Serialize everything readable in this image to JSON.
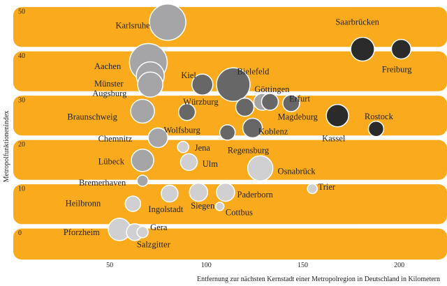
{
  "chart_data": {
    "type": "scatter",
    "xlabel": "Entfernung zur nächsten Kernstadt einer Metropolregion in Deutschland in Kilometern",
    "ylabel": "Metropolfunktionenindex",
    "xlim": [
      0,
      220
    ],
    "ylim": [
      -6,
      51
    ],
    "x_ticks": [
      "50",
      "100",
      "150",
      "200"
    ],
    "y_ticks": [
      "0",
      "10",
      "20",
      "30",
      "40",
      "50"
    ],
    "colors": {
      "band": "#f9ab1d",
      "dark": "#2b2b2b",
      "mid": "#676767",
      "light_mid": "#a5a5a7",
      "light": "#d0d0d2",
      "stroke": "#ffffff"
    },
    "points": [
      {
        "name": "Karlsruhe",
        "x": 80,
        "y": 47.6,
        "size": 26,
        "tone": "light_mid"
      },
      {
        "name": "Saarbrücken",
        "x": 181,
        "y": 41.5,
        "size": 17,
        "tone": "dark"
      },
      {
        "name": "Freiburg",
        "x": 201,
        "y": 41.5,
        "size": 14,
        "tone": "dark"
      },
      {
        "name": "Aachen",
        "x": 70,
        "y": 38.5,
        "size": 27,
        "tone": "light_mid"
      },
      {
        "name": "Münster",
        "x": 71,
        "y": 35.5,
        "size": 20,
        "tone": "light_mid"
      },
      {
        "name": "Augsburg",
        "x": 71,
        "y": 33.5,
        "size": 18,
        "tone": "light_mid"
      },
      {
        "name": "Kiel",
        "x": 98,
        "y": 33.5,
        "size": 15,
        "tone": "mid"
      },
      {
        "name": "Bielefeld",
        "x": 114,
        "y": 33.5,
        "size": 24,
        "tone": "mid"
      },
      {
        "name": "Würzburg",
        "x": 90,
        "y": 27.3,
        "size": 12,
        "tone": "mid"
      },
      {
        "name": "Göttingen",
        "x": 129,
        "y": 29.6,
        "size": 12,
        "tone": "light_mid"
      },
      {
        "name": "Göttingen-2",
        "x": 133,
        "y": 29.6,
        "size": 12,
        "tone": "mid"
      },
      {
        "name": "Erfurt",
        "x": 144,
        "y": 29.3,
        "size": 12,
        "tone": "mid"
      },
      {
        "name": "Magdeburg",
        "x": 120,
        "y": 28.4,
        "size": 13,
        "tone": "mid"
      },
      {
        "name": "Braunschweig",
        "x": 67,
        "y": 27.5,
        "size": 17,
        "tone": "light_mid"
      },
      {
        "name": "Kassel",
        "x": 168,
        "y": 26.5,
        "size": 16,
        "tone": "dark"
      },
      {
        "name": "Rostock",
        "x": 188,
        "y": 23.5,
        "size": 11,
        "tone": "dark"
      },
      {
        "name": "Koblenz",
        "x": 124,
        "y": 23.7,
        "size": 14,
        "tone": "mid"
      },
      {
        "name": "Regensburg",
        "x": 111,
        "y": 22.7,
        "size": 11,
        "tone": "mid"
      },
      {
        "name": "Wolfsburg",
        "x": 75,
        "y": 21.5,
        "size": 14,
        "tone": "light_mid"
      },
      {
        "name": "Chemnitz",
        "x": 75,
        "y": 21.5,
        "size": 14,
        "tone": "light_mid"
      },
      {
        "name": "Jena",
        "x": 88,
        "y": 19.4,
        "size": 8,
        "tone": "light"
      },
      {
        "name": "Lübeck",
        "x": 67,
        "y": 16.4,
        "size": 16,
        "tone": "light_mid"
      },
      {
        "name": "Ulm",
        "x": 91,
        "y": 16.0,
        "size": 12,
        "tone": "light"
      },
      {
        "name": "Osnabrück",
        "x": 128,
        "y": 14.6,
        "size": 18,
        "tone": "light"
      },
      {
        "name": "Bremerhaven",
        "x": 67,
        "y": 11.8,
        "size": 8,
        "tone": "light_mid"
      },
      {
        "name": "Trier",
        "x": 155,
        "y": 10.0,
        "size": 7,
        "tone": "light"
      },
      {
        "name": "Ingolstadt",
        "x": 81,
        "y": 8.9,
        "size": 12,
        "tone": "light"
      },
      {
        "name": "Siegen",
        "x": 96,
        "y": 9.2,
        "size": 13,
        "tone": "light"
      },
      {
        "name": "Paderborn",
        "x": 110,
        "y": 9.2,
        "size": 13,
        "tone": "light"
      },
      {
        "name": "Heilbronn",
        "x": 62,
        "y": 6.6,
        "size": 11,
        "tone": "light"
      },
      {
        "name": "Cottbus",
        "x": 107,
        "y": 6.0,
        "size": 6,
        "tone": "light"
      },
      {
        "name": "Pforzheim",
        "x": 55,
        "y": 0.8,
        "size": 16,
        "tone": "light"
      },
      {
        "name": "Salzgitter",
        "x": 63,
        "y": 0.2,
        "size": 12,
        "tone": "light"
      },
      {
        "name": "Gera",
        "x": 67,
        "y": 0.2,
        "size": 8,
        "tone": "light"
      }
    ],
    "labels": [
      {
        "text": "Karlsruhe",
        "x": 53,
        "y": 46.2
      },
      {
        "text": "Saarbrücken",
        "x": 167,
        "y": 47.0
      },
      {
        "text": "Freiburg",
        "x": 191,
        "y": 36.3
      },
      {
        "text": "Aachen",
        "x": 42,
        "y": 37.0
      },
      {
        "text": "Münster",
        "x": 42,
        "y": 33.1
      },
      {
        "text": "Augsburg",
        "x": 41,
        "y": 30.9
      },
      {
        "text": "Kiel",
        "x": 87,
        "y": 35.0
      },
      {
        "text": "Bielefeld",
        "x": 116,
        "y": 35.8
      },
      {
        "text": "Göttingen",
        "x": 125,
        "y": 31.8
      },
      {
        "text": "Erfurt",
        "x": 143,
        "y": 29.7
      },
      {
        "text": "Würzburg",
        "x": 88,
        "y": 29.0
      },
      {
        "text": "Braunschweig",
        "x": 28,
        "y": 25.6
      },
      {
        "text": "Magdeburg",
        "x": 137,
        "y": 25.6
      },
      {
        "text": "Rostock",
        "x": 182,
        "y": 25.7
      },
      {
        "text": "Kassel",
        "x": 160,
        "y": 20.7
      },
      {
        "text": "Wolfsburg",
        "x": 78,
        "y": 22.6
      },
      {
        "text": "Koblenz",
        "x": 127,
        "y": 22.3
      },
      {
        "text": "Chemnitz",
        "x": 44,
        "y": 20.6
      },
      {
        "text": "Regensburg",
        "x": 111,
        "y": 18.0
      },
      {
        "text": "Jena",
        "x": 94,
        "y": 18.6
      },
      {
        "text": "Lübeck",
        "x": 44,
        "y": 15.5
      },
      {
        "text": "Ulm",
        "x": 98,
        "y": 15.0
      },
      {
        "text": "Osnabrück",
        "x": 137,
        "y": 13.3
      },
      {
        "text": "Bremerhaven",
        "x": 34,
        "y": 10.7
      },
      {
        "text": "Trier",
        "x": 158,
        "y": 9.8
      },
      {
        "text": "Heilbronn",
        "x": 27,
        "y": 6.1
      },
      {
        "text": "Ingolstadt",
        "x": 70,
        "y": 4.7
      },
      {
        "text": "Siegen",
        "x": 92,
        "y": 5.5
      },
      {
        "text": "Paderborn",
        "x": 116,
        "y": 8.0
      },
      {
        "text": "Cottbus",
        "x": 110,
        "y": 4.0
      },
      {
        "text": "Pforzheim",
        "x": 26,
        "y": -0.5
      },
      {
        "text": "Gera",
        "x": 71,
        "y": 0.6
      },
      {
        "text": "Salzgitter",
        "x": 64,
        "y": -3.2
      }
    ]
  }
}
